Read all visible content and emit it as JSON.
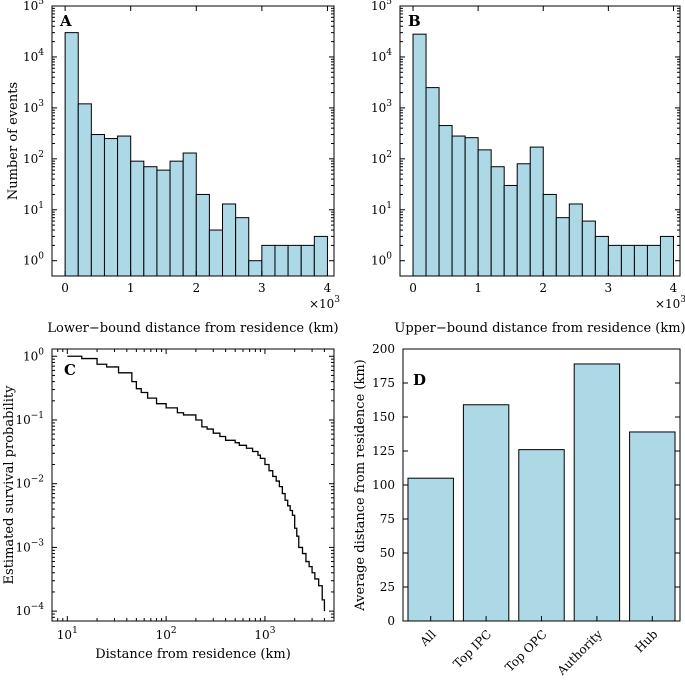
{
  "chart_data": [
    {
      "panel": "A",
      "type": "bar",
      "title": "",
      "xlabel": "Lower−bound distance from residence (km)",
      "ylabel": "Number of events",
      "x_multiplier_label": "×10",
      "x_multiplier_exp": "3",
      "yscale": "log",
      "xlim": [
        -0.2,
        4.1
      ],
      "ylim_exp": [
        -0.3,
        5
      ],
      "xticks": [
        0,
        1,
        2,
        3,
        4
      ],
      "yticks_exp": [
        0,
        1,
        2,
        3,
        4,
        5
      ],
      "bin_edges_start": 0,
      "bin_width": 0.2,
      "values": [
        30000,
        1200,
        300,
        250,
        280,
        90,
        70,
        60,
        90,
        130,
        20,
        4,
        13,
        7,
        1,
        2,
        2,
        2,
        2,
        3
      ]
    },
    {
      "panel": "B",
      "type": "bar",
      "title": "",
      "xlabel": "Upper−bound distance from residence (km)",
      "ylabel": "",
      "x_multiplier_label": "×10",
      "x_multiplier_exp": "3",
      "yscale": "log",
      "xlim": [
        -0.2,
        4.1
      ],
      "ylim_exp": [
        -0.3,
        5
      ],
      "xticks": [
        0,
        1,
        2,
        3,
        4
      ],
      "yticks_exp": [
        0,
        1,
        2,
        3,
        4,
        5
      ],
      "bin_edges_start": 0,
      "bin_width": 0.2,
      "values": [
        28000,
        2500,
        450,
        280,
        260,
        150,
        70,
        30,
        80,
        170,
        20,
        7,
        13,
        6,
        3,
        2,
        2,
        2,
        2,
        3
      ]
    },
    {
      "panel": "C",
      "type": "line",
      "title": "",
      "xlabel": "Distance from residence (km)",
      "ylabel": "Estimated survival probability",
      "xscale": "log",
      "yscale": "log",
      "xlim": [
        7,
        5000
      ],
      "ylim": [
        7e-05,
        1.3
      ],
      "xticks": [
        10,
        100,
        1000
      ],
      "xtick_labels": [
        {
          "base": "10",
          "exp": "1"
        },
        {
          "base": "10",
          "exp": "2"
        },
        {
          "base": "10",
          "exp": "3"
        }
      ],
      "yticks": [
        1,
        0.1,
        0.01,
        0.001,
        0.0001
      ],
      "ytick_labels": [
        {
          "base": "10",
          "exp": "0"
        },
        {
          "base": "10",
          "exp": "−1"
        },
        {
          "base": "10",
          "exp": "−2"
        },
        {
          "base": "10",
          "exp": "−3"
        },
        {
          "base": "10",
          "exp": "−4"
        }
      ],
      "series": [
        {
          "name": "survival",
          "x": [
            10,
            14,
            20,
            25,
            33,
            45,
            50,
            56,
            65,
            80,
            100,
            130,
            150,
            200,
            230,
            260,
            300,
            350,
            400,
            500,
            550,
            650,
            750,
            850,
            900,
            1000,
            1100,
            1200,
            1300,
            1400,
            1500,
            1600,
            1700,
            1800,
            1900,
            2000,
            2100,
            2200,
            2400,
            2600,
            2800,
            3000,
            3200,
            3500,
            3800,
            4000
          ],
          "y": [
            1,
            0.92,
            0.75,
            0.68,
            0.55,
            0.4,
            0.31,
            0.27,
            0.22,
            0.18,
            0.155,
            0.13,
            0.12,
            0.1,
            0.078,
            0.072,
            0.062,
            0.055,
            0.048,
            0.044,
            0.04,
            0.036,
            0.032,
            0.028,
            0.025,
            0.02,
            0.016,
            0.013,
            0.011,
            0.009,
            0.007,
            0.0055,
            0.0045,
            0.0038,
            0.0032,
            0.002,
            0.0015,
            0.001,
            0.0008,
            0.0006,
            0.0005,
            0.0004,
            0.00032,
            0.00025,
            0.00015,
            0.0001
          ]
        }
      ]
    },
    {
      "panel": "D",
      "type": "bar",
      "title": "",
      "xlabel": "",
      "ylabel": "Average distance from residence (km)",
      "ylim": [
        0,
        200
      ],
      "yticks": [
        0,
        25,
        50,
        75,
        100,
        125,
        150,
        175,
        200
      ],
      "categories": [
        "All",
        "Top IPC",
        "Top OPC",
        "Authority",
        "Hub"
      ],
      "values": [
        105,
        159,
        126,
        189,
        139
      ]
    }
  ],
  "colors": {
    "bar_fill": "#add8e6",
    "line": "#000000"
  }
}
